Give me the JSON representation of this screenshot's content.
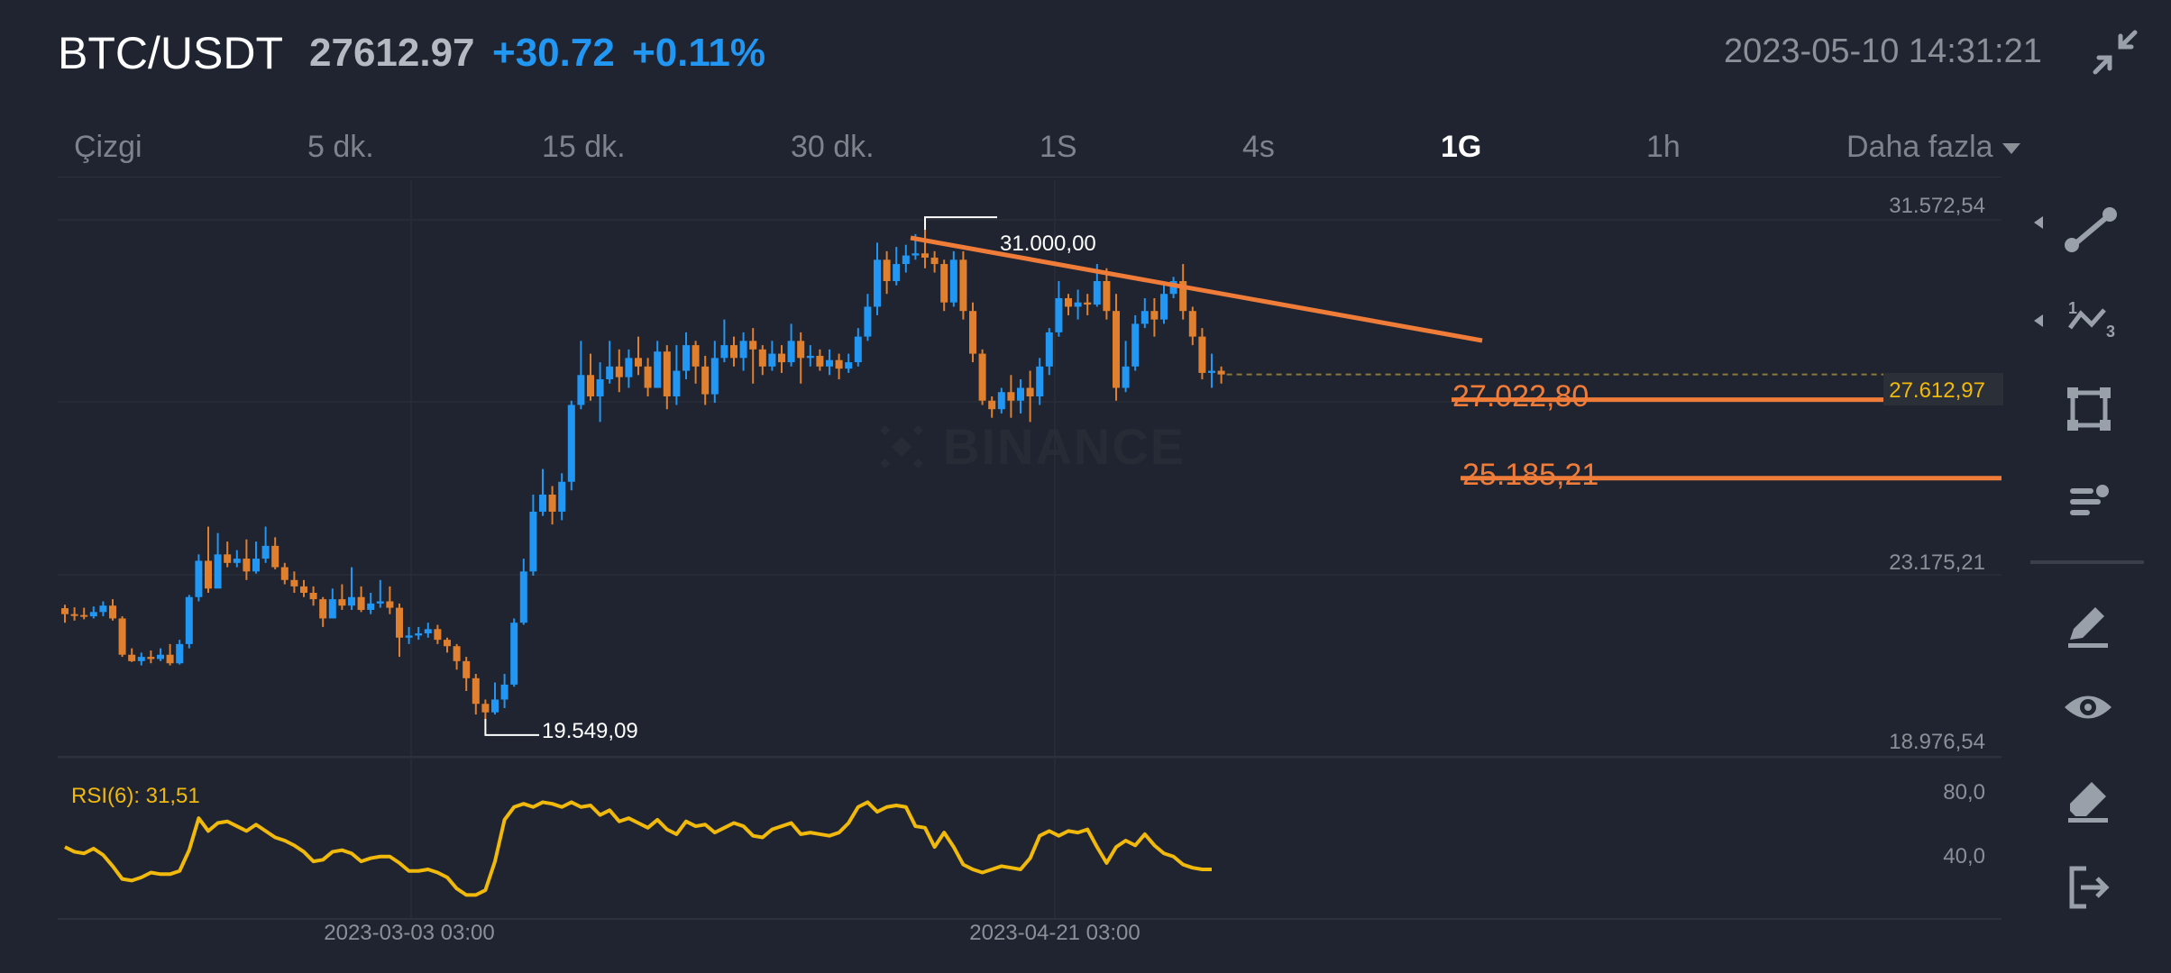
{
  "header": {
    "pair": "BTC/USDT",
    "price": "27612.97",
    "change": "+30.72",
    "change_pct": "+0.11%",
    "timestamp": "2023-05-10 14:31:21",
    "collapse_icon": "collapse-arrows-icon"
  },
  "tabs": [
    {
      "label": "Çizgi",
      "active": false
    },
    {
      "label": "5 dk.",
      "active": false
    },
    {
      "label": "15 dk.",
      "active": false
    },
    {
      "label": "30 dk.",
      "active": false
    },
    {
      "label": "1S",
      "active": false
    },
    {
      "label": "4s",
      "active": false
    },
    {
      "label": "1G",
      "active": true
    },
    {
      "label": "1h",
      "active": false
    },
    {
      "label": "Daha fazla",
      "active": false
    }
  ],
  "colors": {
    "up": "#2196f3",
    "down": "#e0802f",
    "trendline": "#f07c3a",
    "rsi": "#f0b90b",
    "background": "#1f2430"
  },
  "watermark": "BINANCE",
  "chart_data": {
    "type": "candlestick",
    "interval": "1G",
    "y_axis_labels": [
      "31.572,54",
      "23.175,21",
      "18.976,54"
    ],
    "current_price_label": "27.612,97",
    "x_axis_labels": [
      "2023-03-03 03:00",
      "2023-04-21 03:00"
    ],
    "annotations": {
      "high": "31.000,00",
      "low": "19.549,09",
      "level1": "27.022,80",
      "level2": "25.185,21"
    },
    "levels": [
      27022.8,
      25185.21
    ],
    "candles": [
      [
        22140,
        22000,
        22220,
        21800
      ],
      [
        22000,
        21980,
        22160,
        21850
      ],
      [
        21980,
        21950,
        22150,
        21880
      ],
      [
        21950,
        22050,
        22180,
        21900
      ],
      [
        22050,
        22200,
        22300,
        21950
      ],
      [
        22200,
        21900,
        22350,
        21850
      ],
      [
        21900,
        21050,
        21950,
        21000
      ],
      [
        21050,
        20900,
        21200,
        20880
      ],
      [
        20900,
        21000,
        21100,
        20800
      ],
      [
        21000,
        20950,
        21150,
        20850
      ],
      [
        20950,
        21050,
        21200,
        20900
      ],
      [
        21050,
        20850,
        21300,
        20800
      ],
      [
        20850,
        21300,
        21400,
        20820
      ],
      [
        21300,
        22400,
        22450,
        21200
      ],
      [
        22400,
        23250,
        23400,
        22300
      ],
      [
        23250,
        22600,
        24050,
        22500
      ],
      [
        22600,
        23400,
        23900,
        22700
      ],
      [
        23400,
        23200,
        23700,
        23100
      ],
      [
        23200,
        23300,
        23500,
        23100
      ],
      [
        23300,
        23000,
        23750,
        22800
      ],
      [
        23000,
        23300,
        23700,
        22950
      ],
      [
        23300,
        23600,
        24050,
        23200
      ],
      [
        23600,
        23100,
        23800,
        23050
      ],
      [
        23100,
        22800,
        23200,
        22700
      ],
      [
        22800,
        22650,
        23000,
        22500
      ],
      [
        22650,
        22500,
        22800,
        22400
      ],
      [
        22500,
        22350,
        22650,
        22200
      ],
      [
        22350,
        21900,
        22400,
        21700
      ],
      [
        21900,
        22350,
        22600,
        21950
      ],
      [
        22350,
        22200,
        22700,
        22100
      ],
      [
        22200,
        22400,
        23100,
        22100
      ],
      [
        22400,
        22100,
        22650,
        22050
      ],
      [
        22100,
        22250,
        22500,
        22000
      ],
      [
        22250,
        22300,
        22800,
        22150
      ],
      [
        22300,
        22150,
        22650,
        22000
      ],
      [
        22150,
        21450,
        22250,
        21000
      ],
      [
        21450,
        21500,
        21700,
        21300
      ],
      [
        21500,
        21550,
        21700,
        21400
      ],
      [
        21550,
        21650,
        21800,
        21450
      ],
      [
        21650,
        21400,
        21750,
        21300
      ],
      [
        21400,
        21250,
        21450,
        21100
      ],
      [
        21250,
        20900,
        21300,
        20700
      ],
      [
        20900,
        20500,
        21000,
        20200
      ],
      [
        20500,
        19900,
        20600,
        19650
      ],
      [
        19900,
        19700,
        20000,
        19549
      ],
      [
        19700,
        20000,
        20400,
        19650
      ],
      [
        20000,
        20350,
        20600,
        19800
      ],
      [
        20350,
        21800,
        21900,
        20300
      ],
      [
        21800,
        23000,
        23300,
        21750
      ],
      [
        23000,
        24400,
        24800,
        22900
      ],
      [
        24400,
        24800,
        25400,
        24300
      ],
      [
        24800,
        24400,
        25000,
        24100
      ],
      [
        24400,
        25100,
        25300,
        24200
      ],
      [
        25100,
        26900,
        27000,
        24900
      ],
      [
        26900,
        27600,
        28400,
        26800
      ],
      [
        27600,
        27100,
        28100,
        27000
      ],
      [
        27100,
        27500,
        27900,
        26500
      ],
      [
        27500,
        27800,
        28400,
        27400
      ],
      [
        27800,
        27550,
        28200,
        27200
      ],
      [
        27550,
        28000,
        28200,
        27300
      ],
      [
        28000,
        27800,
        28500,
        27600
      ],
      [
        27800,
        27300,
        28000,
        27100
      ],
      [
        27300,
        28150,
        28400,
        27300
      ],
      [
        28150,
        27100,
        28300,
        26800
      ],
      [
        27100,
        27700,
        28300,
        26900
      ],
      [
        27700,
        28300,
        28600,
        27500
      ],
      [
        28300,
        27800,
        28400,
        27400
      ],
      [
        27800,
        27150,
        28050,
        26900
      ],
      [
        27150,
        28000,
        28400,
        26950
      ],
      [
        28000,
        28300,
        28900,
        27900
      ],
      [
        28300,
        28000,
        28500,
        27800
      ],
      [
        28000,
        28400,
        28600,
        27700
      ],
      [
        28400,
        28200,
        28700,
        27400
      ],
      [
        28200,
        27800,
        28300,
        27600
      ],
      [
        27800,
        28100,
        28400,
        27700
      ],
      [
        28100,
        27900,
        28300,
        27650
      ],
      [
        27900,
        28400,
        28800,
        27800
      ],
      [
        28400,
        28000,
        28600,
        27400
      ],
      [
        28000,
        28050,
        28300,
        27800
      ],
      [
        28050,
        27800,
        28200,
        27700
      ],
      [
        27800,
        27950,
        28200,
        27600
      ],
      [
        27950,
        27750,
        28100,
        27500
      ],
      [
        27750,
        27900,
        28100,
        27650
      ],
      [
        27900,
        28500,
        28700,
        27800
      ],
      [
        28500,
        29200,
        29500,
        28400
      ],
      [
        29200,
        30300,
        30700,
        29000
      ],
      [
        30300,
        29800,
        30500,
        29500
      ],
      [
        29800,
        30200,
        30600,
        29700
      ],
      [
        30200,
        30400,
        30650,
        30000
      ],
      [
        30400,
        30450,
        30900,
        30300
      ],
      [
        30450,
        30350,
        31000,
        30100
      ],
      [
        30350,
        30200,
        30500,
        30000
      ],
      [
        30200,
        29300,
        30300,
        29100
      ],
      [
        29300,
        30300,
        30500,
        29200
      ],
      [
        30300,
        29100,
        30500,
        28900
      ],
      [
        29100,
        28100,
        29300,
        27900
      ],
      [
        28100,
        27000,
        28200,
        26900
      ],
      [
        27000,
        26800,
        27100,
        26600
      ],
      [
        26800,
        27200,
        27300,
        26700
      ],
      [
        27200,
        27000,
        27600,
        26600
      ],
      [
        27000,
        27300,
        27500,
        26700
      ],
      [
        27300,
        27100,
        27700,
        26500
      ],
      [
        27100,
        27800,
        28000,
        26900
      ],
      [
        27800,
        28600,
        28700,
        27600
      ],
      [
        28600,
        29400,
        29800,
        28500
      ],
      [
        29400,
        29200,
        29500,
        29000
      ],
      [
        29200,
        29300,
        29600,
        28900
      ],
      [
        29300,
        29250,
        29500,
        29000
      ],
      [
        29250,
        29800,
        30200,
        29200
      ],
      [
        29800,
        29100,
        30100,
        28900
      ],
      [
        29100,
        27300,
        29500,
        27000
      ],
      [
        27300,
        27800,
        28400,
        27200
      ],
      [
        27800,
        28800,
        29000,
        27700
      ],
      [
        28800,
        29100,
        29400,
        28700
      ],
      [
        29100,
        28900,
        29400,
        28500
      ],
      [
        28900,
        29500,
        29700,
        28800
      ],
      [
        29500,
        29800,
        29900,
        29400
      ],
      [
        29800,
        29100,
        30200,
        28900
      ],
      [
        29100,
        28500,
        29200,
        28300
      ],
      [
        28500,
        27650,
        28700,
        27500
      ],
      [
        27650,
        27700,
        28100,
        27300
      ],
      [
        27700,
        27612.97,
        27800,
        27400
      ]
    ],
    "rsi": {
      "label": "RSI(6): 31,51",
      "axis_labels": [
        "80,0",
        "40,0"
      ],
      "values": [
        45,
        42,
        41,
        44,
        40,
        33,
        25,
        24,
        26,
        29,
        28,
        28,
        30,
        43,
        63,
        55,
        60,
        61,
        58,
        55,
        59,
        55,
        51,
        49,
        46,
        42,
        36,
        37,
        42,
        43,
        41,
        36,
        38,
        39,
        39,
        35,
        30,
        30,
        31,
        29,
        26,
        19,
        15,
        15,
        18,
        36,
        62,
        70,
        72,
        70,
        73,
        72,
        70,
        73,
        70,
        71,
        65,
        68,
        61,
        63,
        60,
        57,
        62,
        56,
        53,
        61,
        58,
        59,
        54,
        57,
        60,
        58,
        52,
        51,
        56,
        58,
        60,
        53,
        54,
        53,
        52,
        54,
        60,
        70,
        73,
        67,
        70,
        71,
        70,
        58,
        57,
        45,
        54,
        45,
        34,
        31,
        29,
        31,
        33,
        32,
        31,
        38,
        52,
        55,
        52,
        55,
        54,
        56,
        45,
        35,
        45,
        49,
        46,
        53,
        46,
        41,
        39,
        34,
        32,
        31,
        31
      ]
    }
  }
}
